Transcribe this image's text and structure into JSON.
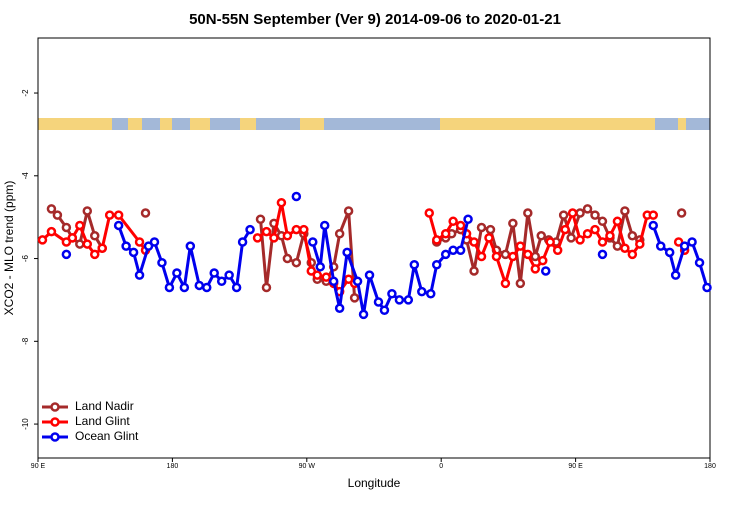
{
  "chart_data": {
    "type": "line",
    "title": "50N-55N September (Ver 9)   2014-09-06 to 2020-01-21",
    "x_label": "Longitude",
    "y_label": "XCO2 - MLO trend (ppm)",
    "xlim": [
      90,
      540
    ],
    "ylim": [
      -10.82,
      -0.67
    ],
    "xticks": [
      {
        "value": 90,
        "label": "90 E"
      },
      180,
      {
        "value": 270,
        "label": "90 W"
      },
      {
        "value": 360,
        "label": "0"
      },
      {
        "value": 450,
        "label": "90 E"
      },
      {
        "value": 540,
        "label": "180"
      }
    ],
    "yticks": [
      -2,
      -4,
      -6,
      -8,
      -10
    ],
    "legend": "bottom-left",
    "series": [
      {
        "name": "Land Nadir",
        "color": "#a52a2a",
        "x": [
          99,
          103,
          109,
          113,
          118,
          123,
          128,
          133,
          null,
          162,
          null,
          239,
          243,
          248,
          253,
          257,
          263,
          268,
          273,
          277,
          283,
          288,
          292,
          298,
          302,
          null,
          357,
          363,
          367,
          373,
          377,
          382,
          387,
          393,
          397,
          403,
          408,
          413,
          418,
          423,
          427,
          432,
          437,
          442,
          447,
          453,
          458,
          463,
          468,
          473,
          478,
          483,
          488,
          493,
          null,
          521
        ],
        "values": [
          -4.8,
          -4.95,
          -5.25,
          -5.5,
          -5.65,
          -4.85,
          -5.45,
          -5.75,
          null,
          -4.9,
          null,
          -5.05,
          -6.7,
          -5.15,
          -5.45,
          -6.0,
          -6.1,
          -5.4,
          -6.1,
          -6.5,
          -6.55,
          -6.2,
          -5.4,
          -4.85,
          -6.95,
          null,
          -5.6,
          -5.5,
          -5.4,
          -5.3,
          -5.55,
          -6.3,
          -5.25,
          -5.3,
          -5.8,
          -5.9,
          -5.15,
          -6.6,
          -4.9,
          -5.95,
          -5.45,
          -5.55,
          -5.6,
          -4.95,
          -5.5,
          -4.9,
          -4.8,
          -4.95,
          -5.1,
          -5.5,
          -5.7,
          -4.85,
          -5.45,
          -5.55,
          null,
          -4.9
        ]
      },
      {
        "name": "Land Glint",
        "color": "#ff0000",
        "x": [
          93,
          99,
          109,
          113,
          118,
          123,
          128,
          133,
          138,
          144,
          158,
          162,
          null,
          237,
          243,
          248,
          253,
          257,
          263,
          268,
          273,
          277,
          283,
          288,
          292,
          298,
          302,
          null,
          352,
          357,
          363,
          368,
          373,
          377,
          382,
          387,
          392,
          397,
          403,
          408,
          413,
          418,
          423,
          428,
          433,
          438,
          443,
          448,
          453,
          458,
          463,
          468,
          473,
          478,
          483,
          488,
          493,
          498,
          502,
          null,
          519,
          523
        ],
        "values": [
          -5.55,
          -5.35,
          -5.6,
          -5.5,
          -5.2,
          -5.65,
          -5.9,
          -5.75,
          -4.95,
          -4.95,
          -5.6,
          -5.8,
          null,
          -5.5,
          -5.35,
          -5.5,
          -4.65,
          -5.45,
          -5.3,
          -5.3,
          -6.3,
          -6.4,
          -6.45,
          -6.6,
          -6.8,
          -6.5,
          -6.6,
          null,
          -4.9,
          -5.55,
          -5.4,
          -5.1,
          -5.2,
          -5.4,
          -5.6,
          -5.95,
          -5.5,
          -5.95,
          -6.6,
          -5.95,
          -5.7,
          -5.9,
          -6.25,
          -6.05,
          -5.6,
          -5.8,
          -5.3,
          -4.9,
          -5.55,
          -5.4,
          -5.3,
          -5.6,
          -5.45,
          -5.1,
          -5.75,
          -5.9,
          -5.65,
          -4.95,
          -4.95,
          null,
          -5.6,
          -5.8
        ]
      },
      {
        "name": "Ocean Glint",
        "color": "#0000ee",
        "x": [
          109,
          null,
          144,
          149,
          154,
          158,
          164,
          168,
          173,
          178,
          183,
          188,
          192,
          198,
          203,
          208,
          213,
          218,
          223,
          227,
          232,
          null,
          263,
          null,
          274,
          279,
          282,
          288,
          292,
          297,
          304,
          308,
          312,
          318,
          322,
          327,
          332,
          338,
          342,
          347,
          353,
          357,
          363,
          368,
          373,
          378,
          null,
          430,
          null,
          468,
          null,
          502,
          507,
          513,
          517,
          523,
          528,
          533,
          538
        ],
        "values": [
          -5.9,
          null,
          -5.2,
          -5.7,
          -5.85,
          -6.4,
          -5.7,
          -5.6,
          -6.1,
          -6.7,
          -6.35,
          -6.7,
          -5.7,
          -6.65,
          -6.7,
          -6.35,
          -6.55,
          -6.4,
          -6.7,
          -5.6,
          -5.3,
          null,
          -4.5,
          null,
          -5.6,
          -6.2,
          -5.2,
          -6.55,
          -7.2,
          -5.85,
          -6.55,
          -7.35,
          -6.4,
          -7.05,
          -7.25,
          -6.85,
          -7.0,
          -7.0,
          -6.15,
          -6.8,
          -6.85,
          -6.15,
          -5.9,
          -5.8,
          -5.8,
          -5.05,
          null,
          -6.3,
          null,
          -5.9,
          null,
          -5.2,
          -5.7,
          -5.85,
          -6.4,
          -5.7,
          -5.6,
          -6.1,
          -6.7
        ]
      }
    ]
  }
}
